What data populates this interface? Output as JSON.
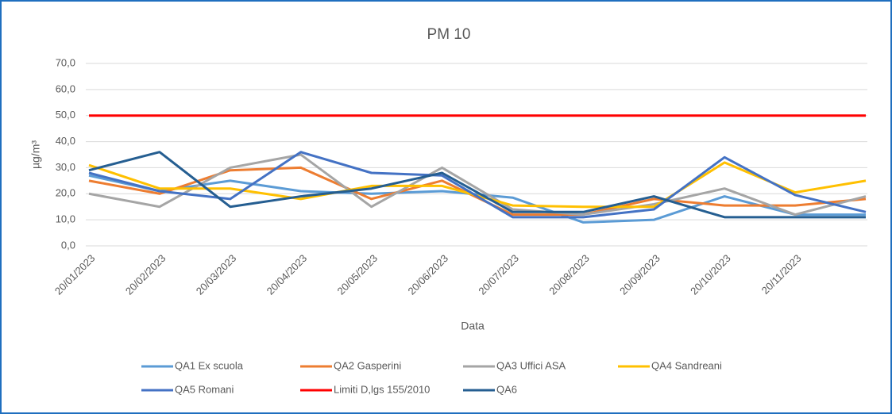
{
  "chart_data": {
    "type": "line",
    "title": "PM 10",
    "y_label": "µg/m³",
    "x_label": "Data",
    "categories": [
      "20/01/2023",
      "20/02/2023",
      "20/03/2023",
      "20/04/2023",
      "20/05/2023",
      "20/06/2023",
      "20/07/2023",
      "20/08/2023",
      "20/09/2023",
      "20/10/2023",
      "20/11/2023",
      null
    ],
    "ylim": [
      0,
      70
    ],
    "yticks": [
      {
        "value": 0,
        "label": "0,0"
      },
      {
        "value": 10,
        "label": "10,0"
      },
      {
        "value": 20,
        "label": "20,0"
      },
      {
        "value": 30,
        "label": "30,0"
      },
      {
        "value": 40,
        "label": "40,0"
      },
      {
        "value": 50,
        "label": "50,0"
      },
      {
        "value": 60,
        "label": "60,0"
      },
      {
        "value": 70,
        "label": "70,0"
      }
    ],
    "grid": true,
    "legend": "bottom",
    "series": [
      {
        "name": "QA1 Ex scuola",
        "color": "#5b9bd5",
        "values": [
          27,
          21,
          25,
          21,
          20,
          21,
          18.5,
          9,
          10,
          19,
          12,
          12
        ]
      },
      {
        "name": "QA2 Gasperini",
        "color": "#ed7d31",
        "values": [
          25,
          20,
          29,
          30,
          18,
          25,
          12,
          12,
          18,
          15.5,
          15.5,
          18
        ]
      },
      {
        "name": "QA3 Uffici ASA",
        "color": "#a5a5a5",
        "values": [
          20,
          15,
          30,
          35,
          15,
          30,
          14,
          12,
          16,
          22,
          12,
          19
        ]
      },
      {
        "name": "QA4 Sandreani",
        "color": "#ffc000",
        "values": [
          31,
          22,
          22,
          18,
          23,
          23,
          15.5,
          15,
          15,
          32,
          20.5,
          25
        ]
      },
      {
        "name": "QA5 Romani",
        "color": "#4472c4",
        "values": [
          28,
          21,
          18,
          36,
          28,
          27,
          11,
          11,
          14,
          34,
          19.5,
          13
        ]
      },
      {
        "name": "Limiti D,lgs 155/2010",
        "color": "#ff0000",
        "values": [
          50,
          50,
          50,
          50,
          50,
          50,
          50,
          50,
          50,
          50,
          50,
          50
        ]
      },
      {
        "name": "QA6",
        "color": "#255e91",
        "values": [
          29,
          36,
          15,
          19,
          22,
          28,
          13,
          13,
          19,
          11,
          11,
          11
        ]
      }
    ]
  }
}
